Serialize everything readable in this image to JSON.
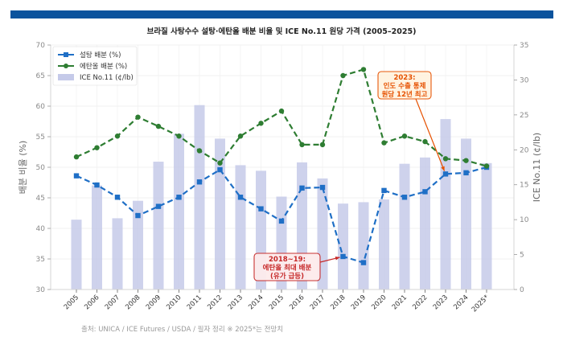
{
  "header": {
    "title": "브라질 사탕수수 설탕·에탄올 배분 비율 및 ICE No.11 원당 가격 (2005–2025)",
    "banner_color": "#0b539d"
  },
  "footer": {
    "source": "출처: UNICA / ICE Futures / USDA / 필자 정리    ※ 2025*는 전망치"
  },
  "chart_data": {
    "type": "bar+line",
    "title": "브라질 사탕수수 설탕·에탄올 배분 비율 및 ICE No.11 원당 가격 (2005–2025)",
    "categories": [
      "2005",
      "2006",
      "2007",
      "2008",
      "2009",
      "2010",
      "2011",
      "2012",
      "2013",
      "2014",
      "2015",
      "2016",
      "2017",
      "2018",
      "2019",
      "2020",
      "2021",
      "2022",
      "2023",
      "2024",
      "2025*"
    ],
    "ylabel_left": "배분 비율 (%)",
    "ylabel_right": "ICE No.11 (¢/lb)",
    "ylim_left": [
      30,
      70
    ],
    "ylim_right": [
      0,
      35
    ],
    "yticks_left": [
      "30",
      "35",
      "40",
      "45",
      "50",
      "55",
      "60",
      "65",
      "70"
    ],
    "yticks_right": [
      "0",
      "5",
      "10",
      "15",
      "20",
      "25",
      "30",
      "35"
    ],
    "grid": true,
    "legend_position": "top-left",
    "series": [
      {
        "name": "설탕 배분 (%)",
        "kind": "line",
        "axis": "left",
        "color": "#1f6fc6",
        "marker": "square",
        "values": [
          48.6,
          47.1,
          45.1,
          42.1,
          43.6,
          45.1,
          47.6,
          49.6,
          45.1,
          43.2,
          41.2,
          46.6,
          46.7,
          35.4,
          34.4,
          46.2,
          45.1,
          46.0,
          48.9,
          49.1,
          50.0
        ]
      },
      {
        "name": "에탄올 배분 (%)",
        "kind": "line",
        "axis": "left",
        "color": "#2e7d32",
        "marker": "circle",
        "values": [
          51.7,
          53.2,
          55.1,
          58.2,
          56.7,
          55.1,
          52.7,
          50.7,
          55.1,
          57.2,
          59.2,
          53.7,
          53.7,
          65.0,
          66.0,
          54.0,
          55.1,
          54.2,
          51.4,
          51.1,
          50.2
        ]
      },
      {
        "name": "ICE No.11 (¢/lb)",
        "kind": "bar",
        "axis": "right",
        "color": "#c5cae9",
        "values": [
          10.0,
          14.9,
          10.2,
          12.7,
          18.3,
          22.3,
          26.4,
          21.6,
          17.8,
          17.0,
          13.3,
          18.2,
          15.9,
          12.3,
          12.5,
          12.9,
          18.0,
          18.9,
          24.4,
          21.6,
          18.1
        ]
      }
    ],
    "annotations": [
      {
        "lines": [
          "2018~19:",
          "에탄올 최대 배분",
          "(유가 급등)"
        ],
        "target_category": "2018",
        "target_series": "설탕 배분 (%)",
        "color": "#c62828"
      },
      {
        "lines": [
          "2023:",
          "인도 수출 통제",
          "원당 12년 최고"
        ],
        "target_category": "2023",
        "target_series": "설탕 배분 (%)",
        "color": "#e65100"
      }
    ]
  }
}
